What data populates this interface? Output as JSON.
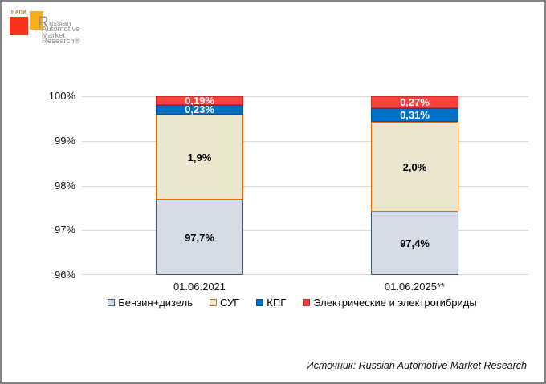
{
  "logo": {
    "napi": "НАПИ",
    "drop_cap": "R",
    "first_line_rest": "ussian",
    "other_lines": [
      "Automotive",
      "Market",
      "Research®"
    ],
    "red_square_color": "#F5321C",
    "orange_square_color": "#FAAE16",
    "text_color": "#8C8C8C"
  },
  "chart_data": {
    "type": "bar",
    "stacked": true,
    "title": "",
    "categories": [
      "01.06.2021",
      "01.06.2025**"
    ],
    "series": [
      {
        "name": "Бензин+дизель",
        "values": [
          97.7,
          97.4
        ],
        "labels": [
          "97,7%",
          "97,4%"
        ],
        "fill": "#D6DCE5",
        "border": "#44546A",
        "label_color": "#000000"
      },
      {
        "name": "СУГ",
        "values": [
          1.9,
          2.0
        ],
        "labels": [
          "1,9%",
          "2,0%"
        ],
        "fill": "#EBE6D0",
        "border": "#E26B0A",
        "label_color": "#000000"
      },
      {
        "name": "КПГ",
        "values": [
          0.23,
          0.31
        ],
        "labels": [
          "0,23%",
          "0,31%"
        ],
        "fill": "#0070C6",
        "border": "#005293",
        "label_color": "#FFFFFF"
      },
      {
        "name": "Электрические и электрогибриды",
        "values": [
          0.19,
          0.27
        ],
        "labels": [
          "0,19%",
          "0,27%"
        ],
        "fill": "#FA423D",
        "border": "#C23128",
        "label_color": "#FFFFFF"
      }
    ],
    "ylim": [
      96,
      100
    ],
    "ytick_step": 1,
    "ytick_labels": [
      "100%",
      "99%",
      "98%",
      "97%",
      "96%"
    ],
    "xlabel": "",
    "ylabel": "",
    "grid": true,
    "gridline_color": "#D9D9D9",
    "legend_position": "bottom"
  },
  "source": "Источник: Russian Automotive Market Research"
}
